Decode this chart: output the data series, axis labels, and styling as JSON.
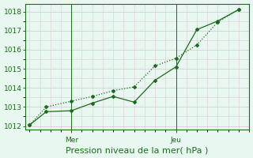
{
  "title": "Pression niveau de la mer( hPa )",
  "bg_color": "#e8f8f0",
  "grid_color": "#e0c8d8",
  "line_color": "#1a6b1a",
  "ylim": [
    1011.8,
    1018.4
  ],
  "yticks": [
    1012,
    1013,
    1014,
    1015,
    1016,
    1017,
    1018
  ],
  "xlabel_fontsize": 8,
  "line1_x": [
    0,
    0.8,
    2,
    3,
    4,
    5,
    6,
    7,
    8,
    9,
    10
  ],
  "line1_y": [
    1012.05,
    1012.75,
    1012.8,
    1013.2,
    1013.55,
    1013.25,
    1014.4,
    1015.1,
    1017.05,
    1017.5,
    1018.1
  ],
  "line2_x": [
    0,
    0.8,
    2,
    3,
    4,
    5,
    6,
    7,
    8,
    9,
    10
  ],
  "line2_y": [
    1012.05,
    1013.0,
    1013.3,
    1013.55,
    1013.85,
    1014.05,
    1015.15,
    1015.55,
    1016.25,
    1017.45,
    1018.1
  ],
  "mer_x": 2.0,
  "jeu_x": 7.0,
  "tick_label_fontsize": 6.5,
  "xlim": [
    -0.2,
    10.5
  ]
}
